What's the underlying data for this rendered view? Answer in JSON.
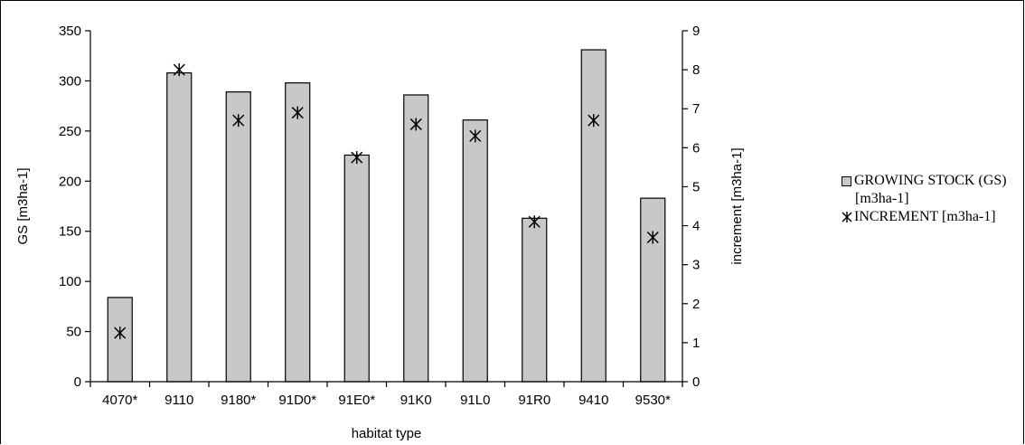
{
  "chart_data": {
    "type": "bar",
    "categories": [
      "4070*",
      "9110",
      "9180*",
      "91D0*",
      "91E0*",
      "91K0",
      "91L0",
      "91R0",
      "9410",
      "9530*"
    ],
    "series": [
      {
        "name": "GROWING STOCK (GS) [m3ha-1]",
        "type": "bar",
        "axis": "left",
        "values": [
          84,
          308,
          289,
          298,
          226,
          286,
          261,
          163,
          331,
          183
        ],
        "color": "#c8c8c8"
      },
      {
        "name": "INCREMENT [m3ha-1]",
        "type": "scatter",
        "axis": "right",
        "marker": "asterisk",
        "values": [
          1.25,
          8.0,
          6.7,
          6.9,
          5.75,
          6.6,
          6.3,
          4.1,
          6.7,
          3.7
        ],
        "color": "#000000"
      }
    ],
    "xlabel": "habitat type",
    "ylabel": "GS [m3ha-1]",
    "y2label": "increment [m3ha-1]",
    "ylim": [
      0,
      350
    ],
    "yticks": [
      0,
      50,
      100,
      150,
      200,
      250,
      300,
      350
    ],
    "y2lim": [
      0,
      9
    ],
    "y2ticks": [
      0,
      1,
      2,
      3,
      4,
      5,
      6,
      7,
      8,
      9
    ],
    "grid": false,
    "legend_position": "right"
  },
  "legend": {
    "bar_label_line1": "GROWING STOCK (GS)",
    "bar_label_line2": "[m3ha-1]",
    "marker_label": "INCREMENT [m3ha-1]"
  }
}
